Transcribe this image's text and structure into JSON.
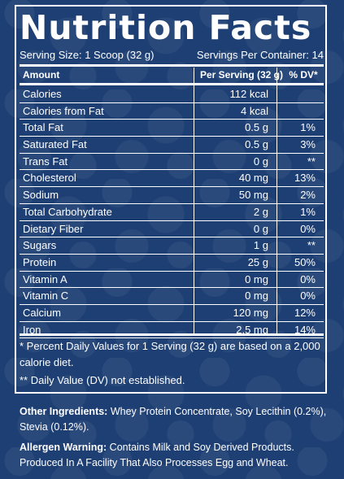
{
  "title": "Nutrition Facts",
  "serving": {
    "size": "Serving Size: 1 Scoop (32 g)",
    "per_container": "Servings Per Container: 14"
  },
  "header": {
    "amount": "Amount",
    "per_serving": "Per Serving (32 g)",
    "dv": "% DV*"
  },
  "rows": [
    {
      "name": "Calories",
      "amount": "112 kcal",
      "dv": ""
    },
    {
      "name": "Calories from Fat",
      "amount": "4 kcal",
      "dv": ""
    },
    {
      "name": "Total Fat",
      "amount": "0.5 g",
      "dv": "1%"
    },
    {
      "name": "Saturated Fat",
      "amount": "0.5 g",
      "dv": "3%"
    },
    {
      "name": "Trans Fat",
      "amount": "0 g",
      "dv": "**"
    },
    {
      "name": "Cholesterol",
      "amount": "40 mg",
      "dv": "13%"
    },
    {
      "name": "Sodium",
      "amount": "50 mg",
      "dv": "2%"
    },
    {
      "name": "Total Carbohydrate",
      "amount": "2 g",
      "dv": "1%"
    },
    {
      "name": "Dietary Fiber",
      "amount": "0 g",
      "dv": "0%"
    },
    {
      "name": "Sugars",
      "amount": "1 g",
      "dv": "**"
    },
    {
      "name": "Protein",
      "amount": "25 g",
      "dv": "50%"
    },
    {
      "name": "Vitamin A",
      "amount": "0 mg",
      "dv": "0%"
    },
    {
      "name": "Vitamin C",
      "amount": "0 mg",
      "dv": "0%"
    },
    {
      "name": "Calcium",
      "amount": "120 mg",
      "dv": "12%"
    },
    {
      "name": "Iron",
      "amount": "2.5 mg",
      "dv": "14%"
    }
  ],
  "footnotes": {
    "percent": "* Percent Daily Values for 1 Serving (32 g) are based on a 2,000 calorie diet.",
    "dv": "** Daily Value (DV) not established."
  },
  "ingredients": {
    "label": "Other Ingredients:",
    "text": "Whey Protein Concentrate, Soy Lecithin (0.2%), Stevia (0.12%)."
  },
  "allergen": {
    "label": "Allergen Warning:",
    "text": "Contains Milk and Soy Derived Products. Produced In A Facility That Also Processes Egg and Wheat."
  }
}
